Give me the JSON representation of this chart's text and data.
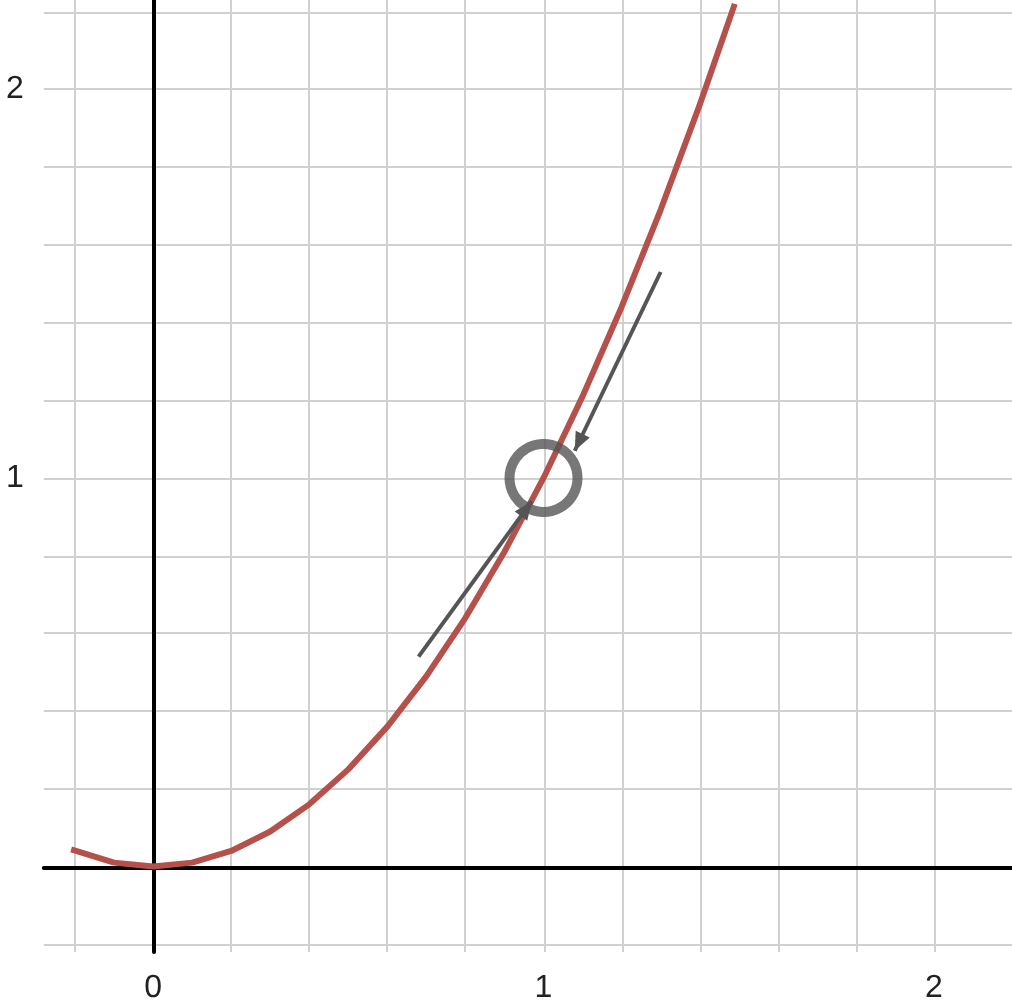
{
  "chart_data": {
    "type": "line",
    "marker": "none",
    "grid": true,
    "xlim": [
      -0.28,
      2.2
    ],
    "ylim": [
      -0.22,
      2.23
    ],
    "xticks": [
      {
        "value": -0.2,
        "label": null
      },
      {
        "value": 0,
        "label": "0"
      },
      {
        "value": 0.2,
        "label": null
      },
      {
        "value": 0.4,
        "label": null
      },
      {
        "value": 0.6,
        "label": null
      },
      {
        "value": 0.8,
        "label": null
      },
      1,
      {
        "value": 1.2,
        "label": null
      },
      {
        "value": 1.4,
        "label": null
      },
      {
        "value": 1.6,
        "label": null
      },
      {
        "value": 1.8,
        "label": null
      },
      2
    ],
    "yticks": [
      {
        "value": -0.2,
        "label": null
      },
      {
        "value": 0,
        "label": null
      },
      {
        "value": 0.2,
        "label": null
      },
      {
        "value": 0.4,
        "label": null
      },
      {
        "value": 0.6,
        "label": null
      },
      {
        "value": 0.8,
        "label": null
      },
      1,
      {
        "value": 1.2,
        "label": null
      },
      {
        "value": 1.4,
        "label": null
      },
      {
        "value": 1.6,
        "label": null
      },
      {
        "value": 1.8,
        "label": null
      },
      2,
      {
        "value": 2.2,
        "label": null
      }
    ],
    "series": [
      {
        "color": "#b5514a",
        "x": [
          -0.21,
          -0.1,
          0,
          0.1,
          0.2,
          0.3,
          0.4,
          0.5,
          0.6,
          0.7,
          0.8,
          0.9,
          1,
          1.1,
          1.2,
          1.3,
          1.4,
          1.49
        ],
        "values": [
          0.044,
          0.01,
          0,
          0.01,
          0.04,
          0.09,
          0.16,
          0.25,
          0.36,
          0.49,
          0.64,
          0.81,
          1,
          1.21,
          1.44,
          1.69,
          1.96,
          2.22
        ]
      },
      {
        "type": "scatter",
        "marker": "circle",
        "color": "#555555",
        "x": [
          1
        ],
        "values": [
          1
        ]
      }
    ]
  }
}
